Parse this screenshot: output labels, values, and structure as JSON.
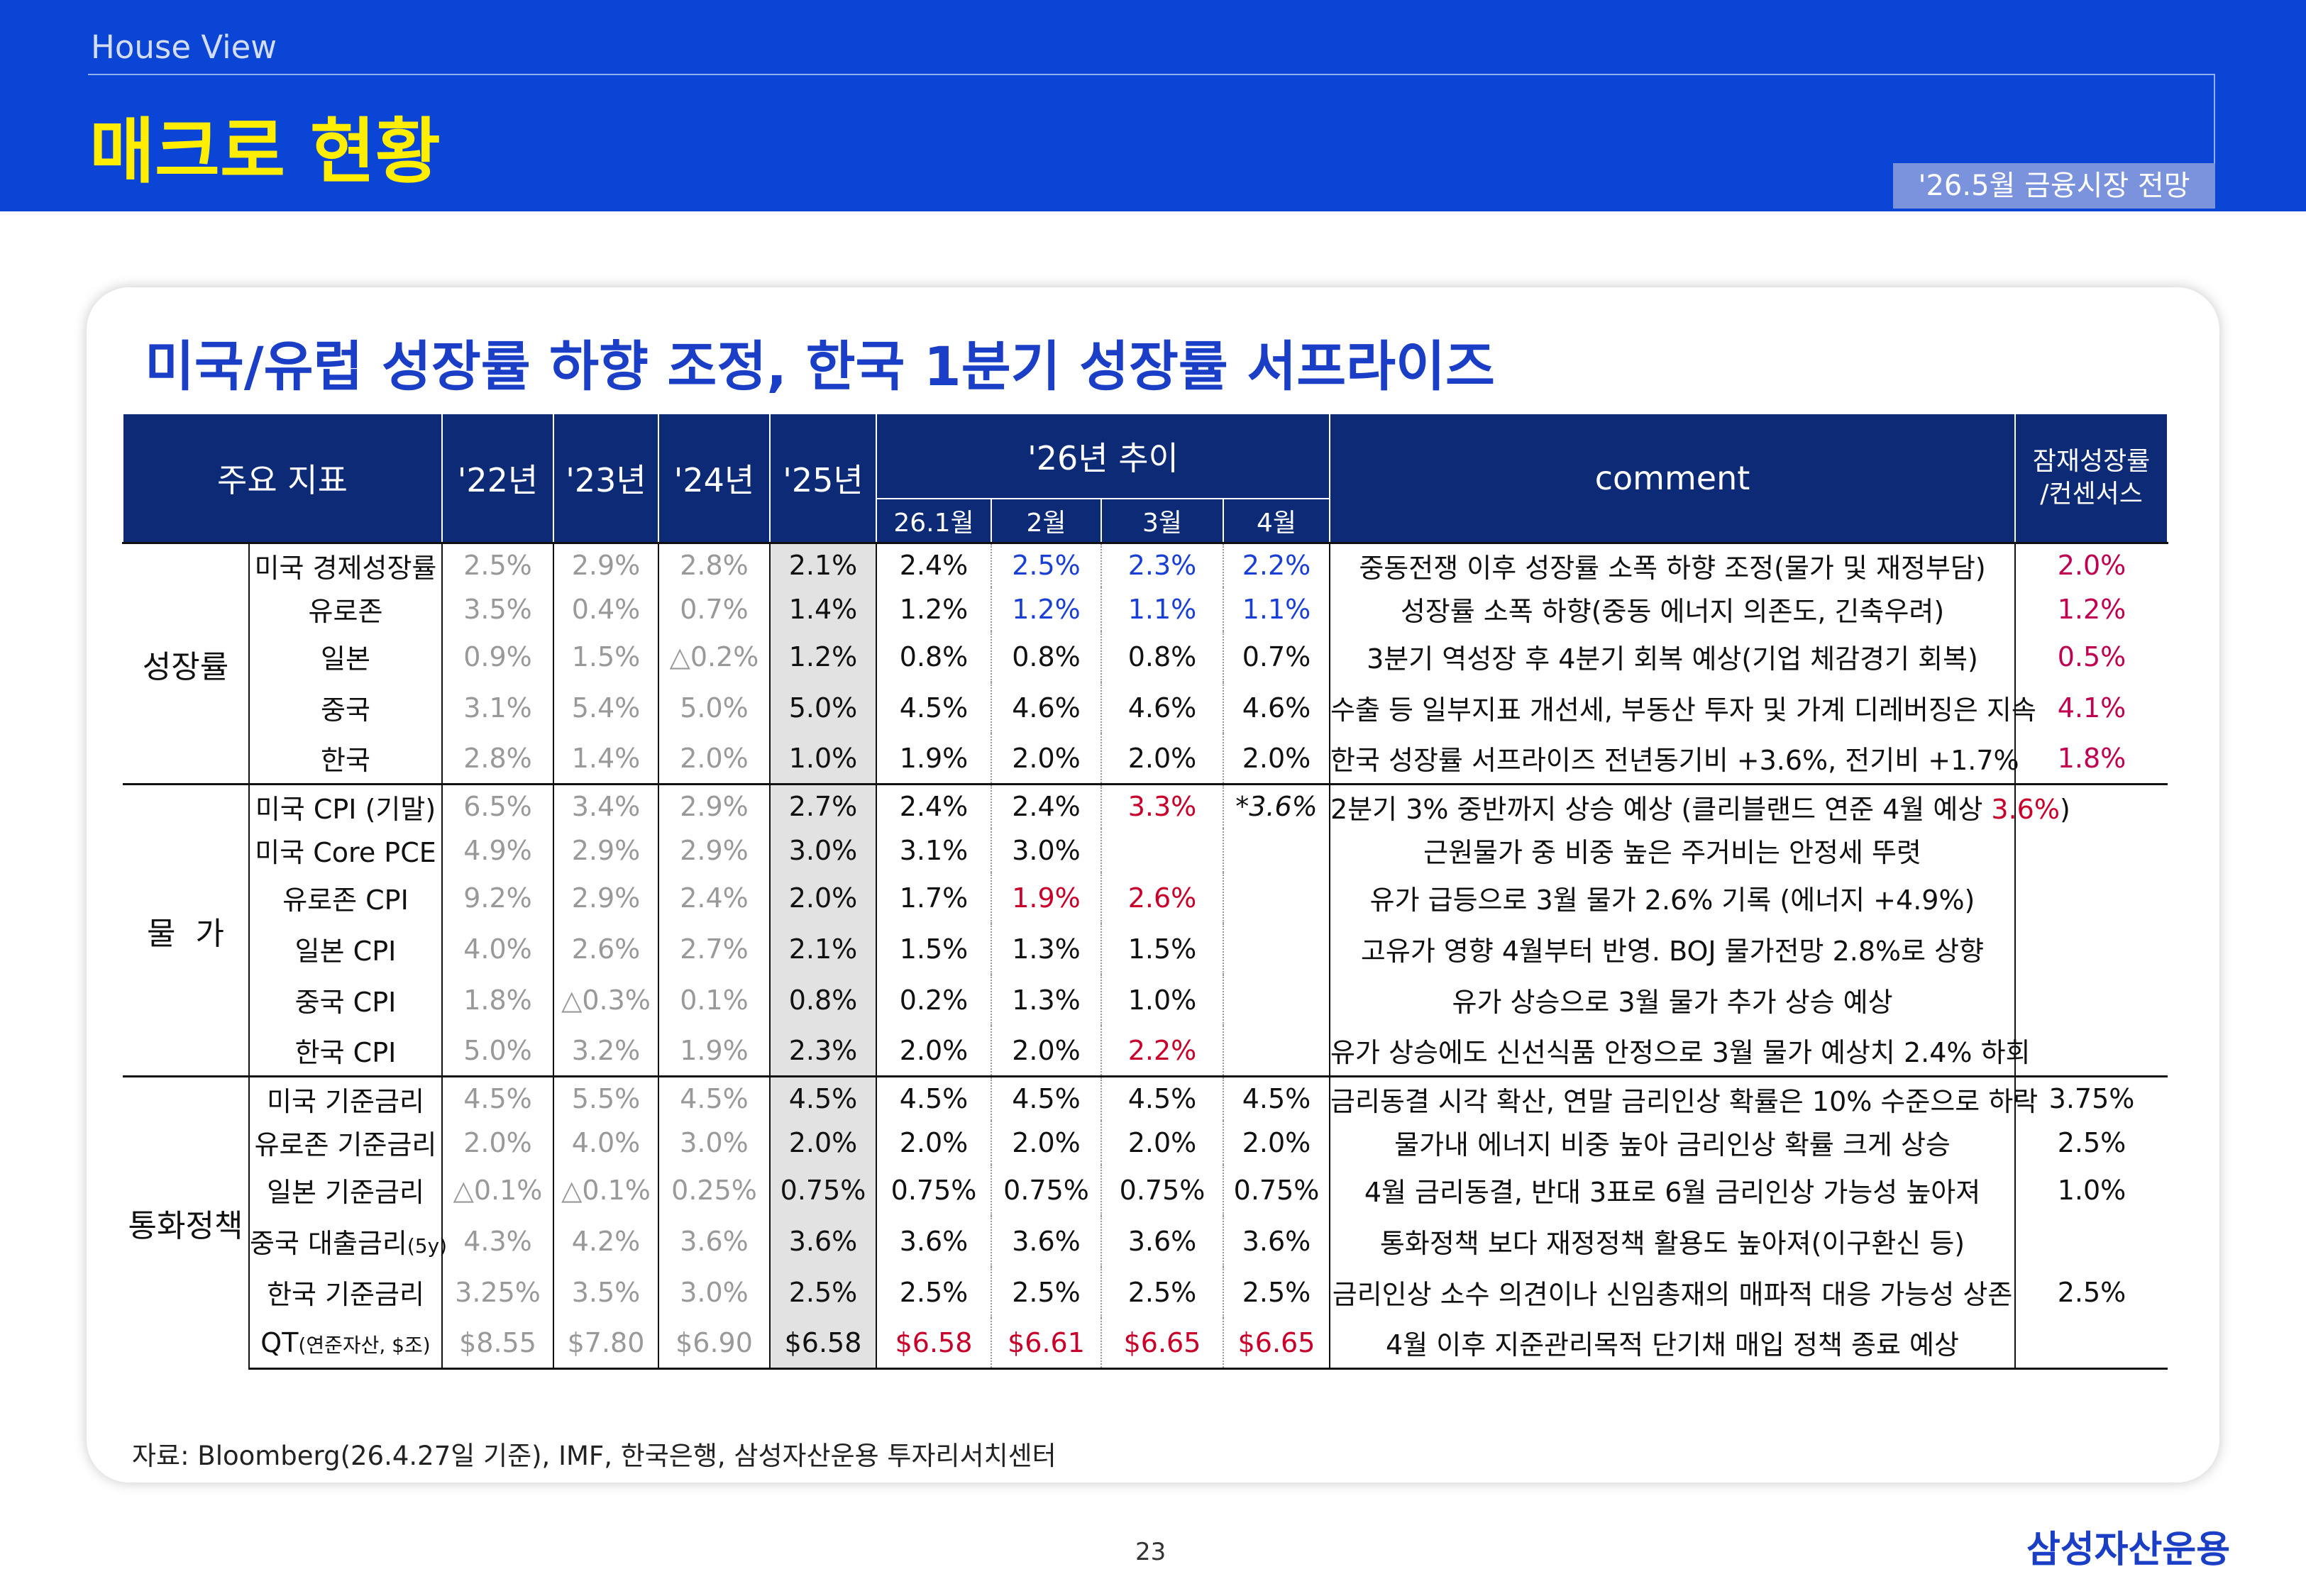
{
  "header": {
    "section": "House View",
    "title": "매크로 현황",
    "badge": "'26.5월 금융시장 전망"
  },
  "headline": "미국/유럽 성장률 하향 조정, 한국 1분기 성장률 서프라이즈",
  "table": {
    "headers": {
      "indicator": "주요 지표",
      "y22": "'22년",
      "y23": "'23년",
      "y24": "'24년",
      "y25": "'25년",
      "trend": "'26년 추이",
      "m1": "26.1월",
      "m2": "2월",
      "m3": "3월",
      "m4": "4월",
      "comment": "comment",
      "potential_l1": "잠재성장률",
      "potential_l2": "/컨센서스"
    },
    "groups": [
      {
        "category": "성장률",
        "rows": [
          {
            "name": "미국 경제성장률",
            "y22": "2.5%",
            "y23": "2.9%",
            "y24": "2.8%",
            "y25": "2.1%",
            "m1": "2.4%",
            "m2": "2.5%",
            "m3": "2.3%",
            "m4": "2.2%",
            "comment": "중동전쟁 이후 성장률 소폭 하향 조정(물가 및 재정부담)",
            "potential": "2.0%"
          },
          {
            "name": "유로존",
            "y22": "3.5%",
            "y23": "0.4%",
            "y24": "0.7%",
            "y25": "1.4%",
            "m1": "1.2%",
            "m2": "1.2%",
            "m3": "1.1%",
            "m4": "1.1%",
            "comment": "성장률 소폭 하향(중동 에너지 의존도, 긴축우려)",
            "potential": "1.2%"
          },
          {
            "name": "일본",
            "y22": "0.9%",
            "y23": "1.5%",
            "y24": "△0.2%",
            "y25": "1.2%",
            "m1": "0.8%",
            "m2": "0.8%",
            "m3": "0.8%",
            "m4": "0.7%",
            "comment": "3분기 역성장 후 4분기 회복 예상(기업 체감경기 회복)",
            "potential": "0.5%"
          },
          {
            "name": "중국",
            "y22": "3.1%",
            "y23": "5.4%",
            "y24": "5.0%",
            "y25": "5.0%",
            "m1": "4.5%",
            "m2": "4.6%",
            "m3": "4.6%",
            "m4": "4.6%",
            "comment": "수출 등 일부지표 개선세, 부동산 투자 및 가계 디레버징은 지속",
            "potential": "4.1%"
          },
          {
            "name": "한국",
            "y22": "2.8%",
            "y23": "1.4%",
            "y24": "2.0%",
            "y25": "1.0%",
            "m1": "1.9%",
            "m2": "2.0%",
            "m3": "2.0%",
            "m4": "2.0%",
            "comment": "한국 성장률 서프라이즈 전년동기비 +3.6%, 전기비 +1.7%",
            "potential": "1.8%"
          }
        ]
      },
      {
        "category": "물  가",
        "rows": [
          {
            "name": "미국 CPI (기말)",
            "y22": "6.5%",
            "y23": "3.4%",
            "y24": "2.9%",
            "y25": "2.7%",
            "m1": "2.4%",
            "m2": "2.4%",
            "m3": "3.3%",
            "m4": "*3.6%",
            "comment": "2분기 3% 중반까지 상승 예상 (클리블랜드 연준 4월 예상 ",
            "comment_hl": "3.6%",
            "comment_tail": ")",
            "potential": ""
          },
          {
            "name": "미국 Core PCE",
            "y22": "4.9%",
            "y23": "2.9%",
            "y24": "2.9%",
            "y25": "3.0%",
            "m1": "3.1%",
            "m2": "3.0%",
            "m3": "",
            "m4": "",
            "comment": "근원물가 중 비중 높은 주거비는 안정세 뚜렷",
            "potential": ""
          },
          {
            "name": "유로존 CPI",
            "y22": "9.2%",
            "y23": "2.9%",
            "y24": "2.4%",
            "y25": "2.0%",
            "m1": "1.7%",
            "m2": "1.9%",
            "m3": "2.6%",
            "m4": "",
            "comment": "유가 급등으로 3월 물가 2.6% 기록 (에너지 +4.9%)",
            "potential": ""
          },
          {
            "name": "일본 CPI",
            "y22": "4.0%",
            "y23": "2.6%",
            "y24": "2.7%",
            "y25": "2.1%",
            "m1": "1.5%",
            "m2": "1.3%",
            "m3": "1.5%",
            "m4": "",
            "comment": "고유가 영향 4월부터 반영. BOJ 물가전망 2.8%로 상향",
            "potential": ""
          },
          {
            "name": "중국 CPI",
            "y22": "1.8%",
            "y23": "△0.3%",
            "y24": "0.1%",
            "y25": "0.8%",
            "m1": "0.2%",
            "m2": "1.3%",
            "m3": "1.0%",
            "m4": "",
            "comment": "유가 상승으로 3월 물가 추가 상승 예상",
            "potential": ""
          },
          {
            "name": "한국 CPI",
            "y22": "5.0%",
            "y23": "3.2%",
            "y24": "1.9%",
            "y25": "2.3%",
            "m1": "2.0%",
            "m2": "2.0%",
            "m3": "2.2%",
            "m4": "",
            "comment": "유가 상승에도 신선식품 안정으로 3월 물가 예상치 2.4% 하회",
            "potential": ""
          }
        ]
      },
      {
        "category": "통화정책",
        "rows": [
          {
            "name": "미국 기준금리",
            "y22": "4.5%",
            "y23": "5.5%",
            "y24": "4.5%",
            "y25": "4.5%",
            "m1": "4.5%",
            "m2": "4.5%",
            "m3": "4.5%",
            "m4": "4.5%",
            "comment": "금리동결 시각 확산, 연말 금리인상 확률은 10% 수준으로 하락",
            "potential": "3.75%"
          },
          {
            "name": "유로존 기준금리",
            "y22": "2.0%",
            "y23": "4.0%",
            "y24": "3.0%",
            "y25": "2.0%",
            "m1": "2.0%",
            "m2": "2.0%",
            "m3": "2.0%",
            "m4": "2.0%",
            "comment": "물가내 에너지 비중 높아 금리인상 확률 크게 상승",
            "potential": "2.5%"
          },
          {
            "name": "일본 기준금리",
            "y22": "△0.1%",
            "y23": "△0.1%",
            "y24": "0.25%",
            "y25": "0.75%",
            "m1": "0.75%",
            "m2": "0.75%",
            "m3": "0.75%",
            "m4": "0.75%",
            "comment": "4월 금리동결, 반대 3표로 6월 금리인상 가능성 높아져",
            "potential": "1.0%"
          },
          {
            "name": "중국 대출금리",
            "name_sub": "(5y)",
            "y22": "4.3%",
            "y23": "4.2%",
            "y24": "3.6%",
            "y25": "3.6%",
            "m1": "3.6%",
            "m2": "3.6%",
            "m3": "3.6%",
            "m4": "3.6%",
            "comment": "통화정책 보다 재정정책 활용도 높아져(이구환신 등)",
            "potential": ""
          },
          {
            "name": "한국 기준금리",
            "y22": "3.25%",
            "y23": "3.5%",
            "y24": "3.0%",
            "y25": "2.5%",
            "m1": "2.5%",
            "m2": "2.5%",
            "m3": "2.5%",
            "m4": "2.5%",
            "comment": "금리인상 소수 의견이나 신임총재의 매파적 대응 가능성 상존",
            "potential": "2.5%"
          },
          {
            "name": "QT",
            "name_sub": "(연준자산, $조)",
            "y22": "$8.55",
            "y23": "$7.80",
            "y24": "$6.90",
            "y25": "$6.58",
            "m1": "$6.58",
            "m2": "$6.61",
            "m3": "$6.65",
            "m4": "$6.65",
            "comment": "4월 이후 지준관리목적 단기채 매입 정책 종료 예상",
            "potential": ""
          }
        ]
      }
    ],
    "highlights": {
      "0.0.m2": "blue",
      "0.0.m3": "blue",
      "0.0.m4": "blue",
      "0.1.m2": "blue",
      "0.1.m3": "blue",
      "0.1.m4": "blue",
      "1.0.m3": "red",
      "1.0.m4": "italic",
      "1.2.m2": "red",
      "1.2.m3": "red",
      "1.5.m3": "red",
      "2.5.m1": "red",
      "2.5.m2": "red",
      "2.5.m3": "red",
      "2.5.m4": "red"
    },
    "colors": {
      "blue": "#1a3fd6",
      "red": "#c8002a",
      "potential": "#c00050"
    }
  },
  "source": "자료: Bloomberg(26.4.27일 기준), IMF, 한국은행, 삼성자산운용 투자리서치센터",
  "page_number": "23",
  "logo": "삼성자산운용"
}
